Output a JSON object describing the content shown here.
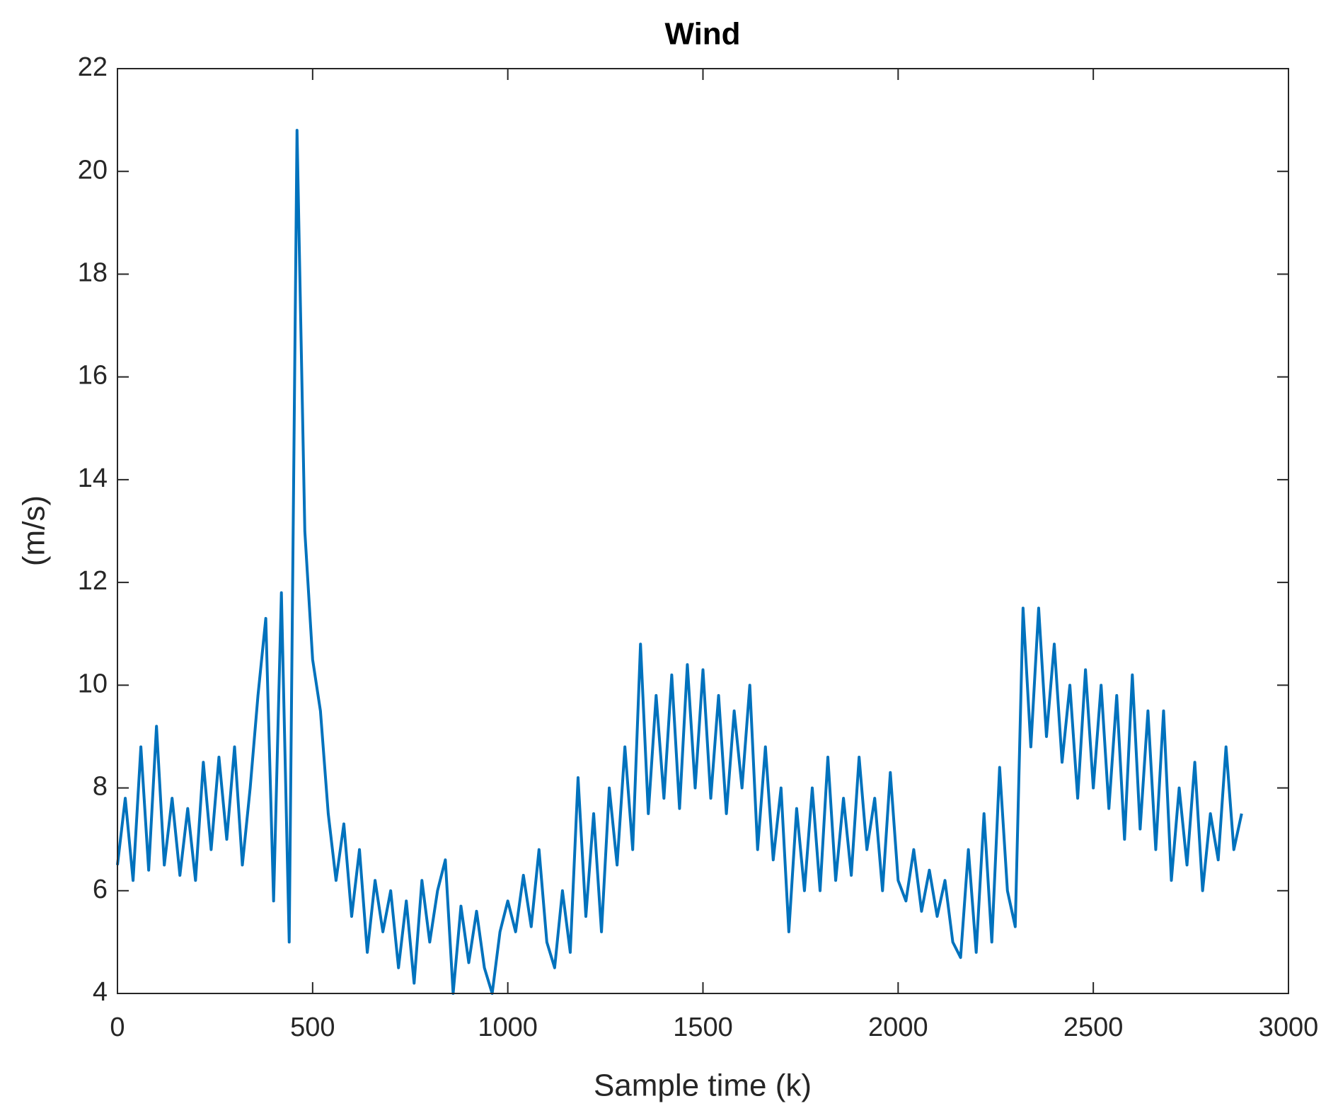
{
  "chart_data": {
    "type": "line",
    "title": "Wind",
    "x_label": "Sample time (k)",
    "y_label": "(m/s)",
    "xlim": [
      0,
      3000
    ],
    "xticks": [
      0,
      500,
      1000,
      1500,
      2000,
      2500,
      3000
    ],
    "ylim": [
      4,
      22
    ],
    "yticks": [
      4,
      6,
      8,
      10,
      12,
      14,
      16,
      18,
      20,
      22
    ],
    "grid": false,
    "x": [
      0,
      20,
      40,
      60,
      80,
      100,
      120,
      140,
      160,
      180,
      200,
      220,
      240,
      260,
      280,
      300,
      320,
      340,
      360,
      380,
      400,
      420,
      440,
      460,
      480,
      500,
      520,
      540,
      560,
      580,
      600,
      620,
      640,
      660,
      680,
      700,
      720,
      740,
      760,
      780,
      800,
      820,
      840,
      860,
      880,
      900,
      920,
      940,
      960,
      980,
      1000,
      1020,
      1040,
      1060,
      1080,
      1100,
      1120,
      1140,
      1160,
      1180,
      1200,
      1220,
      1240,
      1260,
      1280,
      1300,
      1320,
      1340,
      1360,
      1380,
      1400,
      1420,
      1440,
      1460,
      1480,
      1500,
      1520,
      1540,
      1560,
      1580,
      1600,
      1620,
      1640,
      1660,
      1680,
      1700,
      1720,
      1740,
      1760,
      1780,
      1800,
      1820,
      1840,
      1860,
      1880,
      1900,
      1920,
      1940,
      1960,
      1980,
      2000,
      2020,
      2040,
      2060,
      2080,
      2100,
      2120,
      2140,
      2160,
      2180,
      2200,
      2220,
      2240,
      2260,
      2280,
      2300,
      2320,
      2340,
      2360,
      2380,
      2400,
      2420,
      2440,
      2460,
      2480,
      2500,
      2520,
      2540,
      2560,
      2580,
      2600,
      2620,
      2640,
      2660,
      2680,
      2700,
      2720,
      2740,
      2760,
      2780,
      2800,
      2820,
      2840,
      2860,
      2880
    ],
    "series": [
      {
        "color": "#0072bd",
        "values": [
          6.5,
          7.8,
          6.2,
          8.8,
          6.4,
          9.2,
          6.5,
          7.8,
          6.3,
          7.6,
          6.2,
          8.5,
          6.8,
          8.6,
          7.0,
          8.8,
          6.5,
          8.0,
          9.8,
          11.3,
          5.8,
          11.8,
          5.0,
          20.8,
          13.0,
          10.5,
          9.5,
          7.5,
          6.2,
          7.3,
          5.5,
          6.8,
          4.8,
          6.2,
          5.2,
          6.0,
          4.5,
          5.8,
          4.2,
          6.2,
          5.0,
          6.0,
          6.6,
          4.0,
          5.7,
          4.6,
          5.6,
          4.5,
          4.0,
          5.2,
          5.8,
          5.2,
          6.3,
          5.3,
          6.8,
          5.0,
          4.5,
          6.0,
          4.8,
          8.2,
          5.5,
          7.5,
          5.2,
          8.0,
          6.5,
          8.8,
          6.8,
          10.8,
          7.5,
          9.8,
          7.8,
          10.2,
          7.6,
          10.4,
          8.0,
          10.3,
          7.8,
          9.8,
          7.5,
          9.5,
          8.0,
          10.0,
          6.8,
          8.8,
          6.6,
          8.0,
          5.2,
          7.6,
          6.0,
          8.0,
          6.0,
          8.6,
          6.2,
          7.8,
          6.3,
          8.6,
          6.8,
          7.8,
          6.0,
          8.3,
          6.2,
          5.8,
          6.8,
          5.6,
          6.4,
          5.5,
          6.2,
          5.0,
          4.7,
          6.8,
          4.8,
          7.5,
          5.0,
          8.4,
          6.0,
          5.3,
          11.5,
          8.8,
          11.5,
          9.0,
          10.8,
          8.5,
          10.0,
          7.8,
          10.3,
          8.0,
          10.0,
          7.6,
          9.8,
          7.0,
          10.2,
          7.2,
          9.5,
          6.8,
          9.5,
          6.2,
          8.0,
          6.5,
          8.5,
          6.0,
          7.5,
          6.6,
          8.8,
          6.8,
          7.5
        ]
      }
    ]
  }
}
